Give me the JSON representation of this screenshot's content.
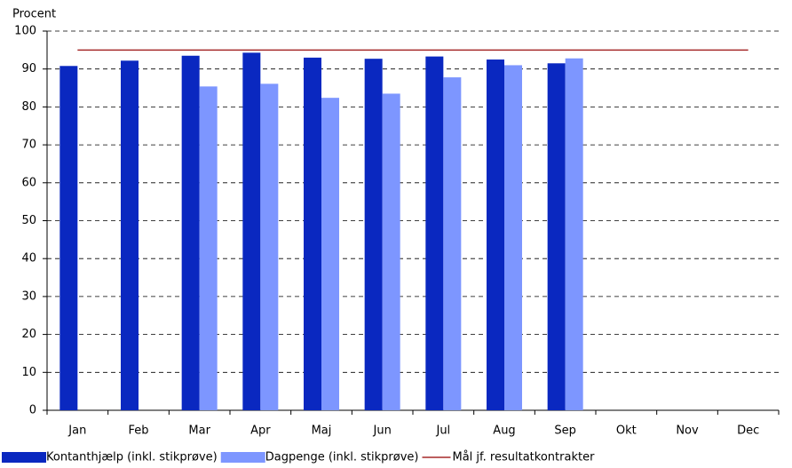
{
  "chart_data": {
    "type": "bar",
    "y_label": "Procent",
    "categories": [
      "Jan",
      "Feb",
      "Mar",
      "Apr",
      "Maj",
      "Jun",
      "Jul",
      "Aug",
      "Sep",
      "Okt",
      "Nov",
      "Dec"
    ],
    "series": [
      {
        "name": "Kontanthjælp (inkl. stikprøve)",
        "color": "#0a28c0",
        "type": "bar",
        "values": [
          90.8,
          92.2,
          93.5,
          94.3,
          93,
          92.7,
          93.3,
          92.5,
          91.5,
          null,
          null,
          null
        ]
      },
      {
        "name": "Dagpenge (inkl. stikprøve)",
        "color": "#7d96ff",
        "type": "bar",
        "values": [
          null,
          null,
          85.4,
          86.1,
          82.4,
          83.5,
          87.8,
          91,
          92.8,
          null,
          null,
          null
        ]
      },
      {
        "name": "Mål jf. resultatkontrakter",
        "color": "#a52a2a",
        "type": "line",
        "values": [
          95,
          95,
          95,
          95,
          95,
          95,
          95,
          95,
          95,
          95,
          95,
          95
        ]
      }
    ],
    "ylim": [
      0,
      100
    ],
    "yticks": [
      0,
      10,
      20,
      30,
      40,
      50,
      60,
      70,
      80,
      90,
      100
    ],
    "grid": true,
    "legend": "bottom"
  }
}
